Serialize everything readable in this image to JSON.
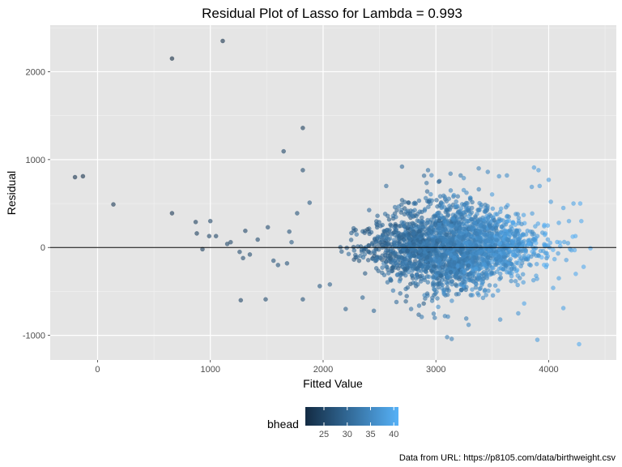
{
  "chart_data": {
    "type": "scatter",
    "title": "Residual Plot of Lasso for Lambda = 0.993",
    "xlabel": "Fitted Value",
    "ylabel": "Residual",
    "xlim": [
      -420,
      4600
    ],
    "ylim": [
      -1280,
      2530
    ],
    "x_ticks": [
      0,
      1000,
      2000,
      3000,
      4000
    ],
    "y_ticks": [
      -1000,
      0,
      1000,
      2000
    ],
    "grid": true,
    "reference_line_y": 0,
    "color_legend": {
      "title": "bhead",
      "ticks": [
        25,
        30,
        35,
        40
      ],
      "range": [
        21,
        41
      ],
      "low_color": "#132B43",
      "high_color": "#56B1F7",
      "placement": "bottom"
    },
    "caption": "Data from URL: https://p8105.com/data/birthweight.csv",
    "points": [
      {
        "x": 1110,
        "y": 2350,
        "c": 22
      },
      {
        "x": 660,
        "y": 2150,
        "c": 21
      },
      {
        "x": 1820,
        "y": 1360,
        "c": 24
      },
      {
        "x": 1650,
        "y": 1095,
        "c": 25
      },
      {
        "x": 1820,
        "y": 880,
        "c": 26
      },
      {
        "x": -200,
        "y": 800,
        "c": 22
      },
      {
        "x": -130,
        "y": 810,
        "c": 22
      },
      {
        "x": 140,
        "y": 490,
        "c": 23
      },
      {
        "x": 660,
        "y": 390,
        "c": 23
      },
      {
        "x": 1770,
        "y": 390,
        "c": 27
      },
      {
        "x": 1880,
        "y": 510,
        "c": 28
      },
      {
        "x": 1000,
        "y": 300,
        "c": 25
      },
      {
        "x": 870,
        "y": 290,
        "c": 24
      },
      {
        "x": 1310,
        "y": 190,
        "c": 25
      },
      {
        "x": 1510,
        "y": 230,
        "c": 26
      },
      {
        "x": 880,
        "y": 160,
        "c": 24
      },
      {
        "x": 990,
        "y": 130,
        "c": 25
      },
      {
        "x": 1050,
        "y": 130,
        "c": 25
      },
      {
        "x": 1700,
        "y": 180,
        "c": 27
      },
      {
        "x": 930,
        "y": -20,
        "c": 24
      },
      {
        "x": 1270,
        "y": -600,
        "c": 25
      },
      {
        "x": 1490,
        "y": -590,
        "c": 26
      },
      {
        "x": 1820,
        "y": -590,
        "c": 27
      },
      {
        "x": 1150,
        "y": 40,
        "c": 25
      },
      {
        "x": 1180,
        "y": 60,
        "c": 25
      },
      {
        "x": 1260,
        "y": -50,
        "c": 26
      },
      {
        "x": 1290,
        "y": -120,
        "c": 26
      },
      {
        "x": 1350,
        "y": -80,
        "c": 26
      },
      {
        "x": 1420,
        "y": 90,
        "c": 26
      },
      {
        "x": 1560,
        "y": -150,
        "c": 27
      },
      {
        "x": 1600,
        "y": -200,
        "c": 27
      },
      {
        "x": 1680,
        "y": -180,
        "c": 27
      },
      {
        "x": 1720,
        "y": 60,
        "c": 28
      },
      {
        "x": 1970,
        "y": -440,
        "c": 28
      },
      {
        "x": 2060,
        "y": -420,
        "c": 29
      },
      {
        "x": 2200,
        "y": -700,
        "c": 29
      },
      {
        "x": 2450,
        "y": -720,
        "c": 30
      },
      {
        "x": 2560,
        "y": 700,
        "c": 31
      },
      {
        "x": 2700,
        "y": 920,
        "c": 31
      },
      {
        "x": 2930,
        "y": 880,
        "c": 32
      },
      {
        "x": 3130,
        "y": 840,
        "c": 33
      },
      {
        "x": 3220,
        "y": 820,
        "c": 33
      },
      {
        "x": 3380,
        "y": 900,
        "c": 34
      },
      {
        "x": 3460,
        "y": 860,
        "c": 35
      },
      {
        "x": 3560,
        "y": 810,
        "c": 36
      },
      {
        "x": 3630,
        "y": 820,
        "c": 36
      },
      {
        "x": 3870,
        "y": 910,
        "c": 38
      },
      {
        "x": 3910,
        "y": 880,
        "c": 38
      },
      {
        "x": 4000,
        "y": 770,
        "c": 38
      },
      {
        "x": 3850,
        "y": 690,
        "c": 37
      },
      {
        "x": 3920,
        "y": 700,
        "c": 38
      },
      {
        "x": 4020,
        "y": 520,
        "c": 38
      },
      {
        "x": 4130,
        "y": 450,
        "c": 39
      },
      {
        "x": 4220,
        "y": 500,
        "c": 39
      },
      {
        "x": 4280,
        "y": 500,
        "c": 40
      },
      {
        "x": 4090,
        "y": 280,
        "c": 39
      },
      {
        "x": 4180,
        "y": 300,
        "c": 39
      },
      {
        "x": 4290,
        "y": 300,
        "c": 40
      },
      {
        "x": 4370,
        "y": -10,
        "c": 41
      },
      {
        "x": 4230,
        "y": -30,
        "c": 40
      },
      {
        "x": 4310,
        "y": -220,
        "c": 40
      },
      {
        "x": 4240,
        "y": -300,
        "c": 40
      },
      {
        "x": 4090,
        "y": -350,
        "c": 39
      },
      {
        "x": 4040,
        "y": -460,
        "c": 39
      },
      {
        "x": 4130,
        "y": -690,
        "c": 39
      },
      {
        "x": 3900,
        "y": -1050,
        "c": 38
      },
      {
        "x": 4270,
        "y": -1100,
        "c": 40
      },
      {
        "x": 3100,
        "y": -1020,
        "c": 34
      },
      {
        "x": 3140,
        "y": -1040,
        "c": 34
      },
      {
        "x": 3290,
        "y": -880,
        "c": 35
      },
      {
        "x": 3080,
        "y": -780,
        "c": 34
      },
      {
        "x": 2990,
        "y": -800,
        "c": 33
      },
      {
        "x": 3570,
        "y": -820,
        "c": 36
      },
      {
        "x": 3730,
        "y": -750,
        "c": 37
      },
      {
        "x": 2780,
        "y": -700,
        "c": 32
      },
      {
        "x": 2650,
        "y": -620,
        "c": 31
      },
      {
        "x": 2350,
        "y": -570,
        "c": 30
      }
    ],
    "cloud": {
      "count": 2500,
      "seed": 7,
      "center_x": 3150,
      "sd_x": 360,
      "sd_y": 260,
      "clip_x": [
        2100,
        4250
      ],
      "clip_y": [
        -900,
        900
      ]
    }
  }
}
